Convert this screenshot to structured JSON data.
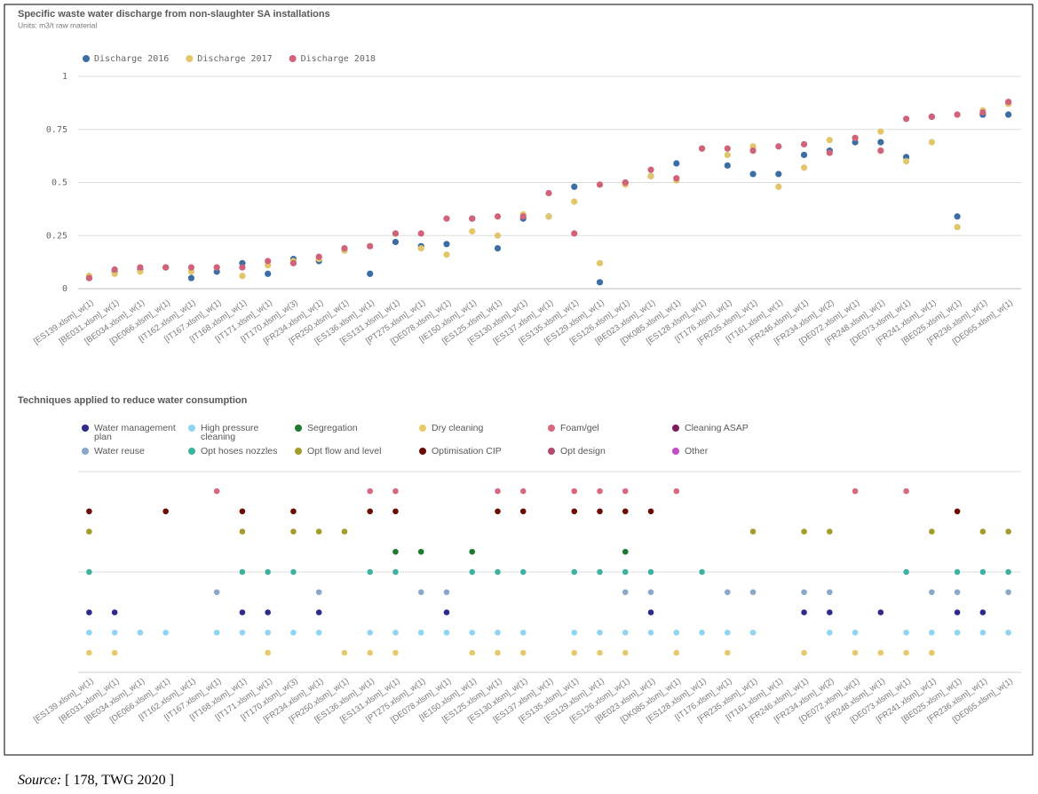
{
  "chart_data": [
    {
      "type": "scatter",
      "title": "Specific waste water discharge from non-slaughter SA installations",
      "subtitle": "Units: m3/t raw material",
      "categories": [
        "[ES139.xlsm]_w(1)",
        "[BE031.xlsm]_w(1)",
        "[BE034.xlsm]_w(1)",
        "[DE066.xlsm]_w(1)",
        "[IT162.xlsm]_w(1)",
        "[IT167.xlsm]_w(1)",
        "[IT168.xlsm]_w(1)",
        "[IT171.xlsm]_w(1)",
        "[IT170.xlsm]_w(3)",
        "[FR234.xlsm]_w(1)",
        "[FR250.xlsm]_w(1)",
        "[ES136.xlsm]_w(1)",
        "[ES131.xlsm]_w(1)",
        "[PT275.xlsm]_w(1)",
        "[DE078.xlsm]_w(1)",
        "[IE150.xlsm]_w(1)",
        "[ES125.xlsm]_w(1)",
        "[ES130.xlsm]_w(1)",
        "[ES137.xlsm]_w(1)",
        "[ES135.xlsm]_w(1)",
        "[ES129.xlsm]_w(1)",
        "[ES126.xlsm]_w(1)",
        "[BE023.xlsm]_w(1)",
        "[DK085.xlsm]_w(1)",
        "[ES128.xlsm]_w(1)",
        "[IT176.xlsm]_w(1)",
        "[FR235.xlsm]_w(1)",
        "[IT161.xlsm]_w(1)",
        "[FR246.xlsm]_w(1)",
        "[FR234.xlsm]_w(2)",
        "[DE072.xlsm]_w(1)",
        "[FR248.xlsm]_w(1)",
        "[DE073.xlsm]_w(1)",
        "[FR241.xlsm]_w(1)",
        "[BE025.xlsm]_w(1)",
        "[FR236.xlsm]_w(1)",
        "[DE065.xlsm]_w(1)"
      ],
      "series": [
        {
          "name": "Discharge 2016",
          "color": "#3a6ea5",
          "values": [
            0.05,
            0.08,
            0.09,
            0.1,
            0.05,
            0.08,
            0.12,
            0.07,
            0.14,
            0.13,
            0.18,
            0.07,
            0.22,
            0.2,
            0.21,
            0.33,
            0.19,
            0.33,
            0.34,
            0.48,
            0.03,
            0.5,
            0.53,
            0.59,
            0.66,
            0.58,
            0.54,
            0.54,
            0.63,
            0.65,
            0.69,
            0.69,
            0.62,
            0.81,
            0.34,
            0.82,
            0.82
          ]
        },
        {
          "name": "Discharge 2017",
          "color": "#e3c56a",
          "values": [
            0.06,
            0.07,
            0.08,
            0.1,
            0.08,
            0.1,
            0.06,
            0.11,
            0.13,
            0.14,
            0.18,
            null,
            0.26,
            0.19,
            0.16,
            0.27,
            0.25,
            0.35,
            0.34,
            0.41,
            0.12,
            0.49,
            0.53,
            0.51,
            0.66,
            0.63,
            0.67,
            0.48,
            0.57,
            0.7,
            0.71,
            0.74,
            0.6,
            0.69,
            0.29,
            0.84,
            0.87
          ]
        },
        {
          "name": "Discharge 2018",
          "color": "#d0627a",
          "values": [
            0.05,
            0.09,
            0.1,
            0.1,
            0.1,
            0.1,
            0.1,
            0.13,
            0.12,
            0.15,
            0.19,
            0.2,
            0.26,
            0.26,
            0.33,
            0.33,
            0.34,
            0.34,
            0.45,
            0.26,
            0.49,
            0.5,
            0.56,
            0.52,
            0.66,
            0.66,
            0.65,
            0.67,
            0.68,
            0.64,
            0.71,
            0.65,
            0.8,
            0.81,
            0.82,
            0.83,
            0.88
          ]
        }
      ],
      "ylim": [
        0,
        1
      ],
      "yticks": [
        0,
        0.25,
        0.5,
        0.75,
        1
      ],
      "grid": true
    },
    {
      "type": "matrix",
      "title": "Techniques applied to reduce water consumption",
      "categories": [
        "[ES139.xlsm]_w(1)",
        "[BE031.xlsm]_w(1)",
        "[BE034.xlsm]_w(1)",
        "[DE066.xlsm]_w(1)",
        "[IT162.xlsm]_w(1)",
        "[IT167.xlsm]_w(1)",
        "[IT168.xlsm]_w(1)",
        "[IT171.xlsm]_w(1)",
        "[IT170.xlsm]_w(3)",
        "[FR234.xlsm]_w(1)",
        "[FR250.xlsm]_w(1)",
        "[ES136.xlsm]_w(1)",
        "[ES131.xlsm]_w(1)",
        "[PT275.xlsm]_w(1)",
        "[DE078.xlsm]_w(1)",
        "[IE150.xlsm]_w(1)",
        "[ES125.xlsm]_w(1)",
        "[ES130.xlsm]_w(1)",
        "[ES137.xlsm]_w(1)",
        "[ES135.xlsm]_w(1)",
        "[ES129.xlsm]_w(1)",
        "[ES126.xlsm]_w(1)",
        "[BE023.xlsm]_w(1)",
        "[DK085.xlsm]_w(1)",
        "[ES128.xlsm]_w(1)",
        "[IT176.xlsm]_w(1)",
        "[FR235.xlsm]_w(1)",
        "[IT161.xlsm]_w(1)",
        "[FR246.xlsm]_w(1)",
        "[FR234.xlsm]_w(2)",
        "[DE072.xlsm]_w(1)",
        "[FR248.xlsm]_w(1)",
        "[DE073.xlsm]_w(1)",
        "[FR241.xlsm]_w(1)",
        "[BE025.xlsm]_w(1)",
        "[FR236.xlsm]_w(1)",
        "[DE065.xlsm]_w(1)"
      ],
      "series": [
        {
          "name": "Water management plan",
          "color": "#2e2a8c",
          "values": [
            1,
            1,
            null,
            null,
            null,
            null,
            1,
            1,
            null,
            1,
            null,
            null,
            null,
            null,
            1,
            null,
            null,
            null,
            null,
            null,
            null,
            null,
            1,
            null,
            null,
            null,
            null,
            null,
            1,
            1,
            null,
            1,
            null,
            null,
            1,
            1,
            null
          ]
        },
        {
          "name": "Water reuse",
          "color": "#8ba8c9",
          "values": [
            null,
            null,
            null,
            null,
            null,
            1,
            null,
            null,
            null,
            1,
            null,
            null,
            null,
            1,
            1,
            null,
            null,
            null,
            null,
            null,
            null,
            1,
            1,
            null,
            null,
            1,
            1,
            null,
            1,
            1,
            null,
            null,
            null,
            1,
            1,
            null,
            1
          ]
        },
        {
          "name": "High pressure cleaning",
          "color": "#8fd4f2",
          "values": [
            1,
            1,
            1,
            1,
            null,
            1,
            1,
            1,
            1,
            1,
            null,
            1,
            1,
            1,
            1,
            1,
            1,
            1,
            null,
            1,
            1,
            1,
            1,
            1,
            1,
            1,
            1,
            null,
            null,
            1,
            1,
            null,
            1,
            1,
            1,
            1,
            1
          ]
        },
        {
          "name": "Opt hoses nozzles",
          "color": "#3db39e",
          "values": [
            1,
            null,
            null,
            null,
            null,
            null,
            1,
            1,
            1,
            null,
            null,
            1,
            1,
            null,
            null,
            1,
            1,
            1,
            null,
            1,
            1,
            1,
            1,
            null,
            1,
            null,
            null,
            null,
            null,
            null,
            null,
            null,
            1,
            null,
            1,
            1,
            1
          ]
        },
        {
          "name": "Segregation",
          "color": "#1b7a2f",
          "values": [
            null,
            null,
            null,
            null,
            null,
            null,
            null,
            null,
            null,
            null,
            null,
            null,
            1,
            1,
            null,
            1,
            null,
            null,
            null,
            null,
            null,
            1,
            null,
            null,
            null,
            null,
            null,
            null,
            null,
            null,
            null,
            null,
            null,
            null,
            null,
            null,
            null
          ]
        },
        {
          "name": "Opt flow and level",
          "color": "#a59b2b",
          "values": [
            1,
            null,
            null,
            null,
            null,
            null,
            1,
            null,
            1,
            1,
            1,
            null,
            null,
            null,
            null,
            null,
            null,
            null,
            null,
            null,
            null,
            null,
            null,
            null,
            null,
            null,
            1,
            null,
            1,
            1,
            null,
            null,
            null,
            1,
            null,
            1,
            1
          ]
        },
        {
          "name": "Dry cleaning",
          "color": "#e6c96a",
          "values": [
            1,
            1,
            null,
            null,
            null,
            null,
            null,
            1,
            null,
            null,
            1,
            1,
            1,
            null,
            null,
            1,
            1,
            1,
            null,
            1,
            1,
            1,
            null,
            1,
            null,
            1,
            null,
            null,
            1,
            null,
            1,
            1,
            1,
            1,
            null,
            null,
            null
          ]
        },
        {
          "name": "Optimisation CIP",
          "color": "#6b0b06",
          "values": [
            1,
            null,
            null,
            1,
            null,
            null,
            1,
            null,
            1,
            null,
            null,
            1,
            1,
            null,
            null,
            null,
            1,
            1,
            null,
            1,
            1,
            1,
            1,
            null,
            null,
            null,
            null,
            null,
            null,
            null,
            null,
            null,
            null,
            null,
            1,
            null,
            null
          ]
        },
        {
          "name": "Foam/gel",
          "color": "#d9687e",
          "values": [
            null,
            null,
            null,
            null,
            null,
            1,
            null,
            null,
            null,
            null,
            null,
            1,
            1,
            null,
            null,
            null,
            1,
            1,
            null,
            1,
            1,
            1,
            null,
            1,
            null,
            null,
            null,
            null,
            null,
            null,
            1,
            null,
            1,
            null,
            null,
            null,
            null
          ]
        },
        {
          "name": "Opt design",
          "color": "#b04b6e",
          "values": [
            null,
            null,
            null,
            null,
            null,
            null,
            null,
            null,
            null,
            null,
            null,
            null,
            null,
            null,
            null,
            null,
            null,
            null,
            null,
            null,
            null,
            null,
            null,
            null,
            null,
            null,
            null,
            null,
            null,
            null,
            null,
            null,
            null,
            null,
            null,
            null,
            null
          ]
        },
        {
          "name": "Cleaning ASAP",
          "color": "#7b1f5c",
          "values": [
            null,
            null,
            null,
            null,
            null,
            null,
            null,
            null,
            null,
            null,
            null,
            null,
            null,
            null,
            null,
            null,
            null,
            null,
            null,
            null,
            null,
            null,
            null,
            null,
            null,
            null,
            null,
            null,
            null,
            null,
            null,
            null,
            null,
            null,
            null,
            null,
            null
          ]
        },
        {
          "name": "Other",
          "color": "#c44bcb",
          "values": [
            null,
            null,
            null,
            null,
            null,
            null,
            null,
            null,
            null,
            null,
            null,
            null,
            null,
            null,
            null,
            null,
            null,
            null,
            null,
            null,
            null,
            null,
            null,
            null,
            null,
            null,
            null,
            null,
            null,
            null,
            null,
            null,
            null,
            null,
            null,
            null,
            null
          ]
        }
      ]
    }
  ],
  "source": {
    "label": "Source:",
    "text": "[ 178, TWG 2020 ]"
  }
}
